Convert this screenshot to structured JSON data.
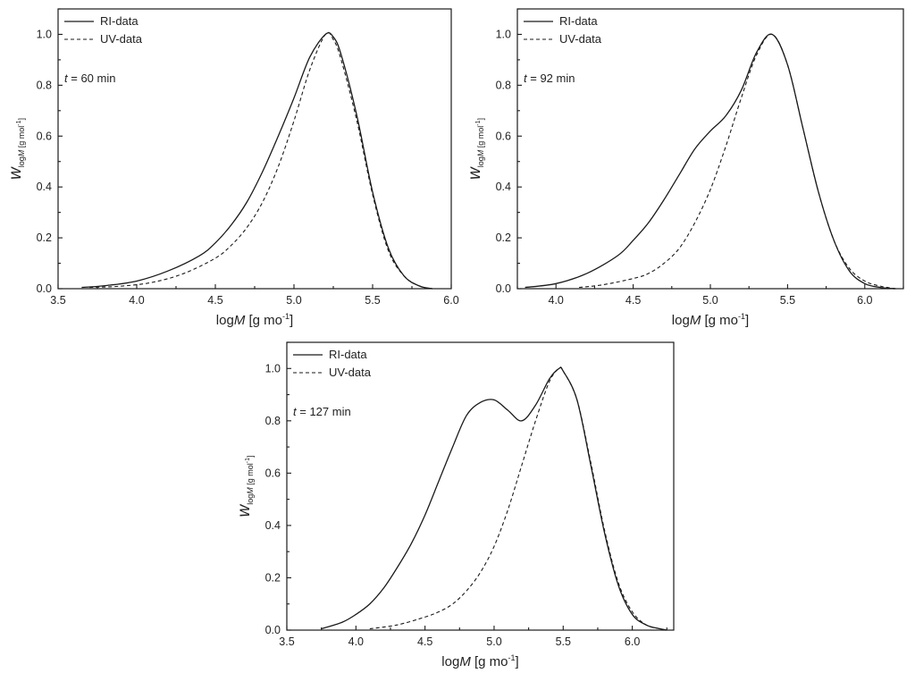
{
  "chart_data": [
    {
      "type": "line",
      "xlabel": "logM [g mol-1]",
      "ylabel": "w logM [g mol-1]",
      "xlim": [
        3.5,
        6.0
      ],
      "ylim": [
        0.0,
        1.1
      ],
      "xticks": [
        "3.5",
        "4.0",
        "4.5",
        "5.0",
        "5.5",
        "6.0"
      ],
      "yticks": [
        "0.0",
        "0.2",
        "0.4",
        "0.6",
        "0.8",
        "1.0"
      ],
      "legend_position": "top-left",
      "annotation": "t = 60 min",
      "series": [
        {
          "name": "RI-data",
          "style": "solid",
          "x": [
            3.65,
            3.8,
            4.0,
            4.2,
            4.4,
            4.5,
            4.6,
            4.7,
            4.8,
            4.9,
            5.0,
            5.1,
            5.2,
            5.25,
            5.3,
            5.4,
            5.5,
            5.6,
            5.7,
            5.8,
            5.88
          ],
          "y": [
            0.005,
            0.012,
            0.03,
            0.07,
            0.13,
            0.18,
            0.25,
            0.34,
            0.46,
            0.6,
            0.75,
            0.91,
            1.0,
            0.99,
            0.92,
            0.68,
            0.38,
            0.16,
            0.05,
            0.01,
            0.0
          ]
        },
        {
          "name": "UV-data",
          "style": "dashed",
          "x": [
            3.7,
            3.9,
            4.1,
            4.3,
            4.5,
            4.6,
            4.7,
            4.8,
            4.9,
            5.0,
            5.1,
            5.2,
            5.25,
            5.3,
            5.4,
            5.5,
            5.6,
            5.7,
            5.8,
            5.88
          ],
          "y": [
            0.005,
            0.01,
            0.025,
            0.06,
            0.12,
            0.17,
            0.24,
            0.34,
            0.48,
            0.66,
            0.86,
            1.0,
            0.98,
            0.9,
            0.66,
            0.37,
            0.15,
            0.05,
            0.01,
            0.0
          ]
        }
      ]
    },
    {
      "type": "line",
      "xlabel": "logM [g mol-1]",
      "ylabel": "w logM [g mol-1]",
      "xlim": [
        3.75,
        6.25
      ],
      "ylim": [
        0.0,
        1.1
      ],
      "xticks": [
        "4.0",
        "4.5",
        "5.0",
        "5.5",
        "6.0"
      ],
      "yticks": [
        "0.0",
        "0.2",
        "0.4",
        "0.6",
        "0.8",
        "1.0"
      ],
      "legend_position": "top-left",
      "annotation": "t = 92 min",
      "series": [
        {
          "name": "RI-data",
          "style": "solid",
          "x": [
            3.8,
            4.0,
            4.2,
            4.4,
            4.5,
            4.6,
            4.7,
            4.8,
            4.9,
            5.0,
            5.1,
            5.2,
            5.3,
            5.4,
            5.5,
            5.6,
            5.7,
            5.8,
            5.9,
            6.0,
            6.1,
            6.2
          ],
          "y": [
            0.005,
            0.02,
            0.06,
            0.13,
            0.19,
            0.26,
            0.35,
            0.45,
            0.55,
            0.62,
            0.68,
            0.78,
            0.93,
            1.0,
            0.88,
            0.63,
            0.38,
            0.19,
            0.07,
            0.02,
            0.005,
            0.0
          ]
        },
        {
          "name": "UV-data",
          "style": "dashed",
          "x": [
            4.15,
            4.3,
            4.5,
            4.6,
            4.7,
            4.8,
            4.9,
            5.0,
            5.1,
            5.2,
            5.3,
            5.4,
            5.5,
            5.6,
            5.7,
            5.8,
            5.9,
            6.0,
            6.1,
            6.2
          ],
          "y": [
            0.005,
            0.015,
            0.04,
            0.06,
            0.1,
            0.16,
            0.26,
            0.39,
            0.56,
            0.75,
            0.92,
            1.0,
            0.88,
            0.63,
            0.38,
            0.19,
            0.08,
            0.03,
            0.01,
            0.0
          ]
        }
      ]
    },
    {
      "type": "line",
      "xlabel": "logM [g mol-1]",
      "ylabel": "w logM [g mol-1]",
      "xlim": [
        3.5,
        6.3
      ],
      "ylim": [
        0.0,
        1.1
      ],
      "xticks": [
        "3.5",
        "4.0",
        "4.5",
        "5.0",
        "5.5",
        "6.0"
      ],
      "yticks": [
        "0.0",
        "0.2",
        "0.4",
        "0.6",
        "0.8",
        "1.0"
      ],
      "legend_position": "top-left",
      "annotation": "t = 127 min",
      "series": [
        {
          "name": "RI-data",
          "style": "solid",
          "x": [
            3.75,
            3.9,
            4.0,
            4.1,
            4.2,
            4.3,
            4.4,
            4.5,
            4.6,
            4.7,
            4.8,
            4.9,
            5.0,
            5.1,
            5.2,
            5.3,
            5.4,
            5.47,
            5.5,
            5.6,
            5.7,
            5.8,
            5.9,
            6.0,
            6.1,
            6.2,
            6.25
          ],
          "y": [
            0.005,
            0.03,
            0.06,
            0.1,
            0.16,
            0.24,
            0.33,
            0.44,
            0.57,
            0.7,
            0.82,
            0.87,
            0.88,
            0.84,
            0.8,
            0.86,
            0.96,
            1.0,
            0.99,
            0.88,
            0.63,
            0.37,
            0.17,
            0.06,
            0.02,
            0.005,
            0.0
          ]
        },
        {
          "name": "UV-data",
          "style": "dashed",
          "x": [
            4.1,
            4.3,
            4.5,
            4.6,
            4.7,
            4.8,
            4.9,
            5.0,
            5.1,
            5.2,
            5.3,
            5.4,
            5.47,
            5.5,
            5.6,
            5.7,
            5.8,
            5.9,
            6.0,
            6.1,
            6.2,
            6.25
          ],
          "y": [
            0.005,
            0.02,
            0.05,
            0.07,
            0.1,
            0.15,
            0.22,
            0.32,
            0.46,
            0.63,
            0.8,
            0.95,
            1.0,
            0.99,
            0.88,
            0.64,
            0.38,
            0.18,
            0.07,
            0.02,
            0.005,
            0.0
          ]
        }
      ]
    }
  ]
}
